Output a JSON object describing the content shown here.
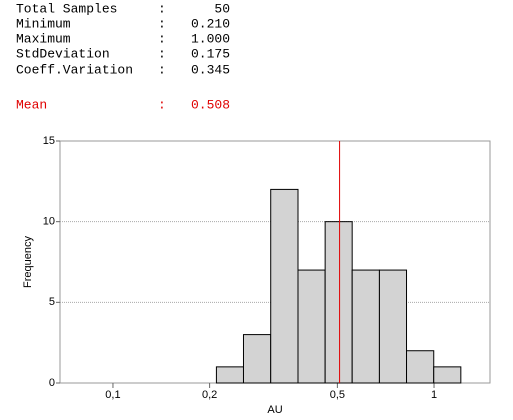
{
  "stats": {
    "separator": ":",
    "rows": [
      {
        "label": "Total Samples",
        "value": "50"
      },
      {
        "label": "Minimum",
        "value": "0.210"
      },
      {
        "label": "Maximum",
        "value": "1.000"
      },
      {
        "label": "StdDeviation",
        "value": "0.175"
      },
      {
        "label": "Coeff.Variation",
        "value": "0.345"
      }
    ]
  },
  "chart_data": {
    "type": "histogram",
    "bins": [
      0.21,
      0.255,
      0.31,
      0.377,
      0.458,
      0.556,
      0.676,
      0.821,
      0.998,
      1.212
    ],
    "values": [
      1,
      3,
      12,
      7,
      10,
      7,
      7,
      2,
      1
    ],
    "color": "#d3d3d3",
    "mean": {
      "label": "Mean",
      "value": 0.508,
      "color": "#e00000"
    },
    "xlabel": "AU",
    "ylabel": "Frequency",
    "xscale": "log",
    "xlim": [
      0.0684,
      1.494
    ],
    "xticks": [
      {
        "value": 0.1,
        "label": "0,1"
      },
      {
        "value": 0.2,
        "label": "0,2"
      },
      {
        "value": 0.5,
        "label": "0,5"
      },
      1
    ],
    "ylim": [
      0,
      15
    ],
    "yticks": [
      0,
      5,
      10,
      15
    ],
    "grid": true
  }
}
